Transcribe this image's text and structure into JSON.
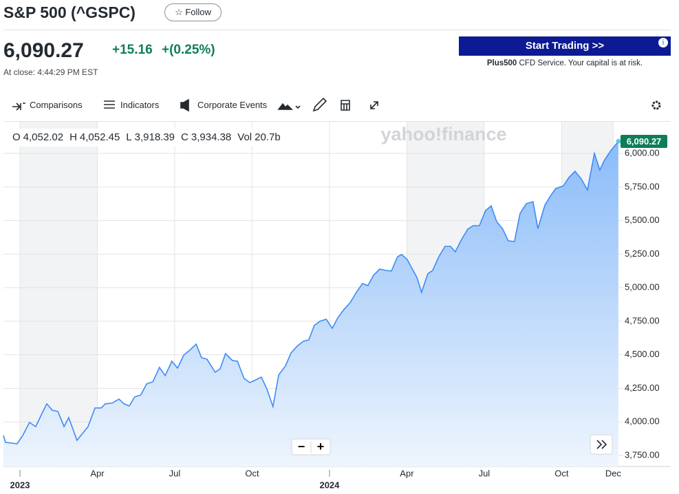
{
  "header": {
    "title": "S&P 500 (^GSPC)",
    "follow": "Follow"
  },
  "quote": {
    "price": "6,090.27",
    "change": "+15.16",
    "change_pct": "+(0.25%)",
    "close_time": "At close: 4:44:29 PM EST"
  },
  "ad": {
    "button": "Start Trading >>",
    "brand": "Plus500",
    "text": " CFD Service. Your capital is at risk."
  },
  "toolbar": {
    "items": [
      "Comparisons",
      "Indicators",
      "Corporate Events"
    ]
  },
  "ohlc": [
    {
      "label": "O",
      "value": "4,052.02"
    },
    {
      "label": "H",
      "value": "4,052.45"
    },
    {
      "label": "L",
      "value": "3,918.39"
    },
    {
      "label": "C",
      "value": "3,934.38"
    },
    {
      "label": "Vol",
      "value": "20.7b"
    }
  ],
  "watermark": "yahoo!finance",
  "zoom": [
    "−",
    "+"
  ],
  "chart_data": {
    "type": "area",
    "xlim": [
      -0.64,
      23.23
    ],
    "ylim": [
      3668,
      6236
    ],
    "xticks": [
      {
        "value": 0,
        "label": "2023"
      },
      {
        "value": 3,
        "label": "Apr"
      },
      {
        "value": 6,
        "label": "Jul"
      },
      {
        "value": 9,
        "label": "Oct"
      },
      {
        "value": 12,
        "label": "2024"
      },
      {
        "value": 15,
        "label": "Apr"
      },
      {
        "value": 18,
        "label": "Jul"
      },
      {
        "value": 21,
        "label": "Oct"
      },
      {
        "value": 23,
        "label": "Dec"
      }
    ],
    "yticks": [
      {
        "value": 3750,
        "label": "3,750.00"
      },
      {
        "value": 4000,
        "label": "4,000.00"
      },
      {
        "value": 4250,
        "label": "4,250.00"
      },
      {
        "value": 4500,
        "label": "4,500.00"
      },
      {
        "value": 4750,
        "label": "4,750.00"
      },
      {
        "value": 5000,
        "label": "5,000.00"
      },
      {
        "value": 5250,
        "label": "5,250.00"
      },
      {
        "value": 5500,
        "label": "5,500.00"
      },
      {
        "value": 5750,
        "label": "5,750.00"
      },
      {
        "value": 6000,
        "label": "6,000.00"
      }
    ],
    "grid": true,
    "series": [
      {
        "color": "#3d8af7",
        "x": [
          -0.64,
          -0.56,
          -0.11,
          0.11,
          0.37,
          0.61,
          0.83,
          1.04,
          1.25,
          1.47,
          1.71,
          1.89,
          2.21,
          2.64,
          2.91,
          3.15,
          3.31,
          3.57,
          3.84,
          4.03,
          4.24,
          4.45,
          4.69,
          4.91,
          5.15,
          5.41,
          5.63,
          5.89,
          6.11,
          6.35,
          6.61,
          6.83,
          7.04,
          7.25,
          7.57,
          7.76,
          7.97,
          8.24,
          8.43,
          8.69,
          8.91,
          9.15,
          9.36,
          9.57,
          9.81,
          10.03,
          10.29,
          10.51,
          10.75,
          10.99,
          11.2,
          11.41,
          11.63,
          11.87,
          12.11,
          12.32,
          12.56,
          12.8,
          13.04,
          13.28,
          13.49,
          13.71,
          13.95,
          14.19,
          14.4,
          14.64,
          14.8,
          15.01,
          15.17,
          15.39,
          15.57,
          15.81,
          16.0,
          16.24,
          16.48,
          16.69,
          16.88,
          17.09,
          17.36,
          17.57,
          17.81,
          18.05,
          18.27,
          18.48,
          18.72,
          18.93,
          19.17,
          19.39,
          19.63,
          19.89,
          20.08,
          20.35,
          20.56,
          20.77,
          21.07,
          21.28,
          21.52,
          21.76,
          22.0,
          22.27,
          22.48,
          22.67,
          22.91,
          23.2
        ],
        "values": [
          3899,
          3848,
          3837,
          3899,
          3996,
          3965,
          4053,
          4135,
          4088,
          4078,
          3965,
          4032,
          3863,
          3965,
          4104,
          4104,
          4135,
          4140,
          4170,
          4135,
          4119,
          4186,
          4201,
          4283,
          4299,
          4406,
          4345,
          4452,
          4401,
          4498,
          4539,
          4580,
          4478,
          4468,
          4370,
          4396,
          4509,
          4457,
          4452,
          4324,
          4293,
          4314,
          4334,
          4247,
          4114,
          4350,
          4416,
          4514,
          4565,
          4601,
          4611,
          4719,
          4750,
          4765,
          4698,
          4775,
          4837,
          4888,
          4965,
          5031,
          5016,
          5093,
          5139,
          5129,
          5124,
          5231,
          5247,
          5211,
          5154,
          5077,
          4965,
          5103,
          5129,
          5231,
          5308,
          5308,
          5267,
          5349,
          5436,
          5462,
          5462,
          5575,
          5610,
          5493,
          5436,
          5349,
          5344,
          5554,
          5626,
          5641,
          5441,
          5615,
          5682,
          5739,
          5759,
          5821,
          5867,
          5810,
          5728,
          6000,
          5877,
          5954,
          6021,
          6090.27
        ]
      }
    ]
  }
}
